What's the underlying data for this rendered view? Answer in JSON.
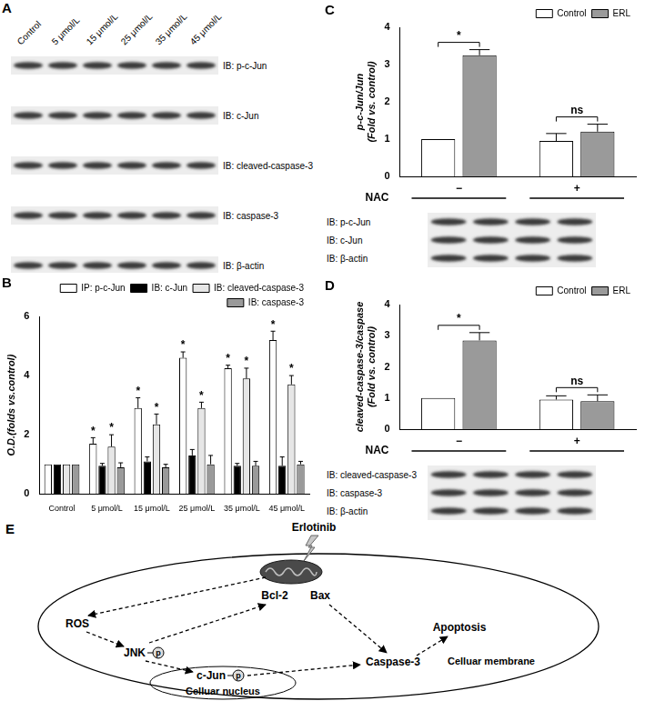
{
  "chart_data": [
    {
      "panel": "B",
      "type": "bar",
      "categories": [
        "Control",
        "5 μmol/L",
        "15 μmol/L",
        "25 μmol/L",
        "35 μmol/L",
        "45 μmol/L"
      ],
      "series": [
        {
          "name": "IP: p-c-Jun",
          "color": "#ffffff",
          "values": [
            1,
            1.7,
            2.9,
            4.6,
            4.25,
            5.2
          ],
          "errors": [
            0,
            0.2,
            0.35,
            0.2,
            0.1,
            0.3
          ],
          "significance": [
            null,
            "*",
            "*",
            "*",
            "*",
            "*"
          ]
        },
        {
          "name": "IB: c-Jun",
          "color": "#000000",
          "values": [
            1,
            0.95,
            1.1,
            1.3,
            0.95,
            0.95
          ],
          "errors": [
            0,
            0.08,
            0.15,
            0.2,
            0.08,
            0.3
          ]
        },
        {
          "name": "IB: cleaved-caspase-3",
          "color": "#e6e6e6",
          "values": [
            1,
            1.6,
            2.35,
            2.9,
            3.9,
            3.7
          ],
          "errors": [
            0,
            0.4,
            0.35,
            0.2,
            0.35,
            0.3
          ],
          "significance": [
            null,
            "*",
            "*",
            "*",
            "*",
            "*"
          ]
        },
        {
          "name": "IB: caspase-3",
          "color": "#9a9a9a",
          "values": [
            1,
            0.9,
            0.9,
            1.0,
            0.95,
            1.0
          ],
          "errors": [
            0,
            0.15,
            0.1,
            0.3,
            0.15,
            0.1
          ]
        }
      ],
      "y_label": "O.D.(folds vs.control)",
      "ylim": [
        0,
        6
      ],
      "yticks": [
        0,
        2,
        4,
        6
      ],
      "grid": false,
      "legend": "top-right"
    },
    {
      "panel": "C",
      "type": "bar",
      "x_label": "NAC",
      "categories": [
        "−",
        "+"
      ],
      "series": [
        {
          "name": "Control",
          "color": "#ffffff",
          "values": [
            1,
            0.95
          ],
          "errors": [
            0,
            0.2
          ]
        },
        {
          "name": "ERL",
          "color": "#9a9a9a",
          "values": [
            3.25,
            1.2
          ],
          "errors": [
            0.15,
            0.2
          ]
        }
      ],
      "comparisons": [
        {
          "category": "−",
          "label": "*"
        },
        {
          "category": "+",
          "label": "ns"
        }
      ],
      "y_label": [
        "p-c-Jun/Jun",
        "(Fold vs. control)"
      ],
      "ylim": [
        0,
        4
      ],
      "yticks": [
        0,
        1,
        2,
        3,
        4
      ],
      "grid": false,
      "legend": "top-right"
    },
    {
      "panel": "D",
      "type": "bar",
      "x_label": "NAC",
      "categories": [
        "−",
        "+"
      ],
      "series": [
        {
          "name": "Control",
          "color": "#ffffff",
          "values": [
            1,
            0.95
          ],
          "errors": [
            0,
            0.12
          ]
        },
        {
          "name": "ERL",
          "color": "#9a9a9a",
          "values": [
            2.85,
            0.9
          ],
          "errors": [
            0.25,
            0.2
          ]
        }
      ],
      "comparisons": [
        {
          "category": "−",
          "label": "*"
        },
        {
          "category": "+",
          "label": "ns"
        }
      ],
      "y_label": [
        "cleaved-caspase-3/caspase",
        "(Fold vs. control)"
      ],
      "ylim": [
        0,
        4
      ],
      "yticks": [
        0,
        1,
        2,
        3,
        4
      ],
      "grid": false,
      "legend": "top-right"
    }
  ],
  "blots": {
    "A": {
      "panel": "A",
      "lanes": [
        "Control",
        "5 μmol/L",
        "15 μmol/L",
        "25 μmol/L",
        "35 μmol/L",
        "45 μmol/L"
      ],
      "rows": [
        "IB: p-c-Jun",
        "IB: c-Jun",
        "IB: cleaved-caspase-3",
        "IB: caspase-3",
        "IB: β-actin"
      ]
    },
    "C": {
      "rows": [
        "IB: p-c-Jun",
        "IB: c-Jun",
        "IB: β-actin"
      ]
    },
    "D": {
      "rows": [
        "IB: cleaved-caspase-3",
        "IB: caspase-3",
        "IB: β-actin"
      ]
    }
  },
  "diagram": {
    "panel": "E",
    "drug": "Erlotinib",
    "bcl2": "Bcl-2",
    "bax": "Bax",
    "ros": "ROS",
    "jnk": "JNK",
    "phospho": "p",
    "cjun": "c-Jun",
    "nucleus": "Celluar nucleus",
    "caspase": "Caspase-3",
    "apoptosis": "Apoptosis",
    "membrane": "Celluar membrane"
  }
}
